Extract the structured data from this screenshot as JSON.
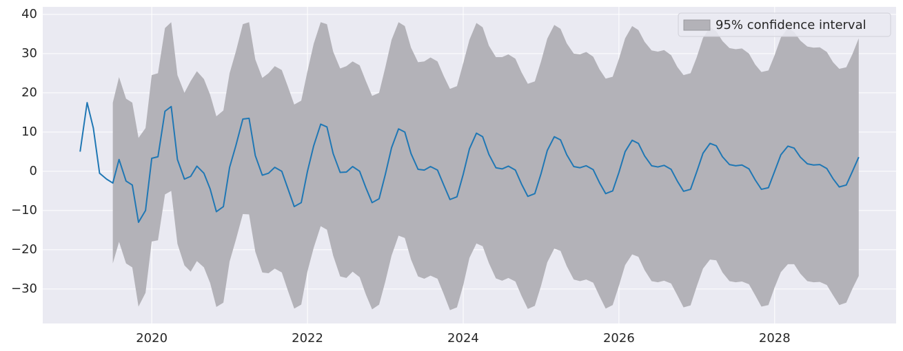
{
  "chart_data": {
    "type": "line",
    "x": [
      2019.08,
      2019.17,
      2019.25,
      2019.33,
      2019.42,
      2019.5,
      2019.58,
      2019.67,
      2019.75,
      2019.83,
      2019.92,
      2020,
      2020.08,
      2020.17,
      2020.25,
      2020.33,
      2020.42,
      2020.5,
      2020.58,
      2020.67,
      2020.75,
      2020.83,
      2020.92,
      2021,
      2021.08,
      2021.17,
      2021.25,
      2021.33,
      2021.42,
      2021.5,
      2021.58,
      2021.67,
      2021.75,
      2021.83,
      2021.92,
      2022,
      2022.08,
      2022.17,
      2022.25,
      2022.33,
      2022.42,
      2022.5,
      2022.58,
      2022.67,
      2022.75,
      2022.83,
      2022.92,
      2023,
      2023.08,
      2023.17,
      2023.25,
      2023.33,
      2023.42,
      2023.5,
      2023.58,
      2023.67,
      2023.75,
      2023.83,
      2023.92,
      2024,
      2024.08,
      2024.17,
      2024.25,
      2024.33,
      2024.42,
      2024.5,
      2024.58,
      2024.67,
      2024.75,
      2024.83,
      2024.92,
      2025,
      2025.08,
      2025.17,
      2025.25,
      2025.33,
      2025.42,
      2025.5,
      2025.58,
      2025.67,
      2025.75,
      2025.83,
      2025.92,
      2026,
      2026.08,
      2026.17,
      2026.25,
      2026.33,
      2026.42,
      2026.5,
      2026.58,
      2026.67,
      2026.75,
      2026.83,
      2026.92,
      2027,
      2027.08,
      2027.17,
      2027.25,
      2027.33,
      2027.42,
      2027.5,
      2027.58,
      2027.67,
      2027.75,
      2027.83,
      2027.92,
      2028,
      2028.08,
      2028.17,
      2028.25,
      2028.33,
      2028.42,
      2028.5,
      2028.58,
      2028.67,
      2028.75,
      2028.83,
      2028.92,
      2029,
      2029.08
    ],
    "series": [
      {
        "color": "#1f77b4",
        "values": [
          5,
          17.5,
          11,
          -0.5,
          -2,
          -3,
          3,
          -2.5,
          -3.5,
          -13,
          -10,
          3.3,
          3.7,
          15.3,
          16.5,
          3,
          -2,
          -1.3,
          1.3,
          -0.5,
          -4.5,
          -10.3,
          -9,
          1,
          6.5,
          13.3,
          13.5,
          4,
          -1,
          -0.5,
          1,
          0,
          -4.5,
          -9,
          -8,
          0,
          6.5,
          12,
          11.3,
          4.5,
          -0.3,
          -0.2,
          1.2,
          0,
          -4.2,
          -8,
          -7,
          -0.8,
          6,
          10.8,
          10,
          4.5,
          0.5,
          0.3,
          1.2,
          0.3,
          -3.5,
          -7.2,
          -6.5,
          -0.8,
          5.7,
          9.7,
          8.8,
          4.3,
          0.9,
          0.6,
          1.3,
          0.3,
          -3.3,
          -6.4,
          -5.7,
          -0.6,
          5.3,
          8.8,
          8,
          4.2,
          1.2,
          0.9,
          1.4,
          0.4,
          -2.9,
          -5.7,
          -5,
          -0.3,
          5,
          7.9,
          7.1,
          3.9,
          1.4,
          1.1,
          1.5,
          0.5,
          -2.5,
          -5.1,
          -4.6,
          -0.1,
          4.6,
          7.1,
          6.5,
          3.7,
          1.7,
          1.4,
          1.6,
          0.6,
          -2.2,
          -4.6,
          -4.2,
          0,
          4.2,
          6.4,
          5.9,
          3.6,
          1.9,
          1.6,
          1.7,
          0.7,
          -1.9,
          -4,
          -3.5,
          0,
          3.6
        ]
      }
    ],
    "band": {
      "name": "95% confidence interval",
      "color": "#b3b2b8",
      "upper": [
        null,
        null,
        null,
        null,
        null,
        17.5,
        24,
        18.5,
        17.5,
        8.5,
        11,
        24.5,
        25,
        36.5,
        38,
        24.5,
        20,
        23,
        25.5,
        23.5,
        19.5,
        14,
        15.5,
        25,
        30.5,
        37.5,
        38,
        28.5,
        23.8,
        25,
        26.8,
        25.8,
        21.5,
        17,
        18,
        25.5,
        32.5,
        38,
        37.5,
        30.5,
        26.2,
        26.8,
        28,
        27,
        23,
        19.2,
        20,
        26.5,
        33.5,
        38,
        37,
        31.5,
        27.8,
        28,
        29,
        28,
        24.3,
        21,
        21.7,
        27.5,
        33.5,
        37.8,
        36.7,
        32,
        29.1,
        29.1,
        29.8,
        28.7,
        25.2,
        22.3,
        22.9,
        28,
        33.8,
        37.3,
        36.3,
        32.6,
        30,
        29.8,
        30.4,
        29.2,
        26,
        23.6,
        24.1,
        28.6,
        33.9,
        37,
        36,
        33,
        30.8,
        30.5,
        30.9,
        29.6,
        26.6,
        24.5,
        25,
        29.1,
        34,
        36.7,
        35.7,
        33.2,
        31.4,
        31.1,
        31.3,
        30,
        27.2,
        25.3,
        25.7,
        29.6,
        34.1,
        36.5,
        35.5,
        33.3,
        31.8,
        31.5,
        31.6,
        30.4,
        27.8,
        26.1,
        26.5,
        29.9,
        33.9
      ],
      "lower": [
        null,
        null,
        null,
        null,
        null,
        -23.5,
        -18,
        -23.5,
        -24.5,
        -34.5,
        -31,
        -17.9,
        -17.6,
        -5.9,
        -5,
        -18.5,
        -24,
        -25.6,
        -22.9,
        -24.5,
        -28.5,
        -34.6,
        -33.5,
        -23,
        -17.5,
        -10.9,
        -11,
        -20.5,
        -25.8,
        -26,
        -24.8,
        -25.8,
        -30.5,
        -35,
        -34,
        -25.5,
        -19.5,
        -14,
        -14.9,
        -21.5,
        -26.8,
        -27.2,
        -25.6,
        -27,
        -31.4,
        -35.2,
        -34,
        -28.1,
        -21.5,
        -16.4,
        -17,
        -22.5,
        -26.8,
        -27.4,
        -26.6,
        -27.4,
        -31.3,
        -35.4,
        -34.7,
        -29.1,
        -22.1,
        -18.4,
        -19.1,
        -23.4,
        -27.3,
        -27.9,
        -27.2,
        -28.1,
        -31.8,
        -35.1,
        -34.3,
        -29.2,
        -23.2,
        -19.7,
        -20.3,
        -24.2,
        -27.6,
        -28,
        -27.6,
        -28.4,
        -31.8,
        -35,
        -34.1,
        -29.2,
        -23.9,
        -21.2,
        -21.8,
        -25.2,
        -28,
        -28.3,
        -27.9,
        -28.6,
        -31.6,
        -34.7,
        -34.2,
        -29.3,
        -24.8,
        -22.5,
        -22.7,
        -25.8,
        -28,
        -28.3,
        -28.1,
        -28.8,
        -31.6,
        -34.5,
        -34.1,
        -29.6,
        -25.7,
        -23.7,
        -23.7,
        -26.1,
        -28,
        -28.3,
        -28.2,
        -29,
        -31.6,
        -34.1,
        -33.5,
        -29.9,
        -26.7
      ]
    },
    "xlim": [
      2018.6,
      2029.56
    ],
    "ylim": [
      -38.8,
      41.9
    ],
    "xticks": [
      2020,
      2022,
      2024,
      2026,
      2028
    ],
    "yticks": [
      {
        "value": -30,
        "label": "−30"
      },
      {
        "value": -20,
        "label": "−20"
      },
      {
        "value": -10,
        "label": "−10"
      },
      0,
      10,
      20,
      30,
      40
    ],
    "grid": true,
    "legend": "upper right"
  }
}
